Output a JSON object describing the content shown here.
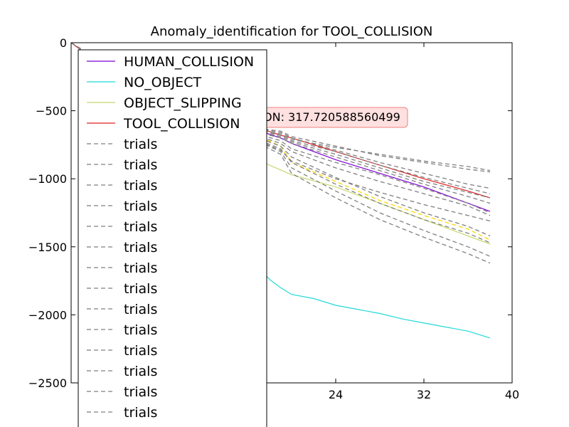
{
  "chart_data": {
    "type": "line",
    "title": "Anomaly_identification for TOOL_COLLISION",
    "xlabel": "",
    "ylabel": "",
    "xlim": [
      0,
      40
    ],
    "ylim": [
      -2500,
      0
    ],
    "xticks": [
      24,
      32,
      40
    ],
    "yticks": [
      0,
      -500,
      -1000,
      -1500,
      -2000,
      -2500
    ],
    "legend": {
      "placement": "upper-left",
      "entries": [
        "HUMAN_COLLISION",
        "NO_OBJECT",
        "OBJECT_SLIPPING",
        "TOOL_COLLISION",
        "trials",
        "trials",
        "trials",
        "trials",
        "trials",
        "trials",
        "trials",
        "trials",
        "trials",
        "trials",
        "trials",
        "trials",
        "trials",
        "trials"
      ]
    },
    "annotation": {
      "text": "TOOL_COLLISION: 317.720588560499",
      "visible_text": "ON: 317.720588560499"
    },
    "series": [
      {
        "name": "HUMAN_COLLISION",
        "color": "#7b00d4",
        "style": "solid",
        "x": [
          0,
          1,
          2,
          4,
          8,
          12,
          16,
          19,
          20,
          24,
          28,
          32,
          36,
          38
        ],
        "y": [
          0,
          -60,
          -120,
          -220,
          -380,
          -520,
          -620,
          -700,
          -740,
          -860,
          -960,
          -1060,
          -1180,
          -1240
        ]
      },
      {
        "name": "NO_OBJECT",
        "color": "#22d8d8",
        "style": "solid",
        "x": [
          0,
          1,
          2,
          4,
          8,
          12,
          16,
          17,
          18,
          19,
          20,
          22,
          24,
          28,
          30,
          32,
          36,
          38
        ],
        "y": [
          0,
          -60,
          -130,
          -320,
          -700,
          -1050,
          -1450,
          -1650,
          -1740,
          -1800,
          -1850,
          -1880,
          -1930,
          -1990,
          -2030,
          -2060,
          -2120,
          -2170
        ]
      },
      {
        "name": "OBJECT_SLIPPING",
        "color": "#c8d870",
        "style": "solid",
        "x": [
          0,
          1,
          2,
          4,
          8,
          12,
          16,
          18,
          20,
          24,
          28,
          32,
          36,
          38
        ],
        "y": [
          0,
          -60,
          -120,
          -240,
          -450,
          -630,
          -820,
          -900,
          -970,
          -1060,
          -1180,
          -1300,
          -1420,
          -1480
        ]
      },
      {
        "name": "TOOL_COLLISION",
        "color": "#e02020",
        "style": "solid",
        "x": [
          0,
          1,
          2,
          4,
          8,
          12,
          16,
          19,
          20,
          24,
          28,
          32,
          36,
          38
        ],
        "y": [
          0,
          -60,
          -110,
          -200,
          -360,
          -500,
          -600,
          -680,
          -700,
          -800,
          -900,
          -1000,
          -1090,
          -1140
        ]
      },
      {
        "name": "trials",
        "color": "#ffd700",
        "style": "dashed",
        "x": [
          0,
          4,
          8,
          12,
          16,
          19,
          20,
          24,
          28,
          32,
          36,
          38
        ],
        "y": [
          0,
          -220,
          -420,
          -560,
          -650,
          -760,
          -880,
          -1020,
          -1160,
          -1270,
          -1370,
          -1450
        ]
      },
      {
        "name": "trials",
        "color": "#808080",
        "style": "dashed",
        "x": [
          0,
          4,
          8,
          12,
          16,
          19,
          20,
          24,
          28,
          32,
          36,
          38
        ],
        "y": [
          0,
          -200,
          -380,
          -520,
          -620,
          -650,
          -690,
          -760,
          -830,
          -880,
          -930,
          -950
        ]
      },
      {
        "name": "trials",
        "color": "#808080",
        "style": "dashed",
        "x": [
          0,
          4,
          8,
          12,
          16,
          19,
          20,
          24,
          28,
          32,
          36,
          38
        ],
        "y": [
          0,
          -200,
          -380,
          -520,
          -620,
          -660,
          -700,
          -790,
          -880,
          -960,
          -1040,
          -1070
        ]
      },
      {
        "name": "trials",
        "color": "#808080",
        "style": "dashed",
        "x": [
          0,
          4,
          8,
          12,
          16,
          19,
          20,
          24,
          28,
          32,
          36,
          38
        ],
        "y": [
          0,
          -210,
          -390,
          -530,
          -630,
          -680,
          -720,
          -800,
          -900,
          -990,
          -1070,
          -1110
        ]
      },
      {
        "name": "trials",
        "color": "#808080",
        "style": "dashed",
        "x": [
          0,
          4,
          8,
          12,
          16,
          19,
          20,
          24,
          28,
          32,
          36,
          38
        ],
        "y": [
          0,
          -210,
          -400,
          -540,
          -640,
          -700,
          -740,
          -840,
          -940,
          -1040,
          -1130,
          -1180
        ]
      },
      {
        "name": "trials",
        "color": "#808080",
        "style": "dashed",
        "x": [
          0,
          4,
          8,
          12,
          16,
          19,
          20,
          24,
          28,
          32,
          36,
          38
        ],
        "y": [
          0,
          -215,
          -405,
          -550,
          -650,
          -720,
          -780,
          -880,
          -970,
          -1070,
          -1180,
          -1250
        ]
      },
      {
        "name": "trials",
        "color": "#808080",
        "style": "dashed",
        "x": [
          0,
          4,
          8,
          12,
          16,
          19,
          20,
          24,
          28,
          32,
          36,
          38
        ],
        "y": [
          0,
          -215,
          -410,
          -555,
          -660,
          -740,
          -800,
          -920,
          -1020,
          -1110,
          -1200,
          -1270
        ]
      },
      {
        "name": "trials",
        "color": "#808080",
        "style": "dashed",
        "x": [
          0,
          4,
          8,
          12,
          16,
          19,
          20,
          24,
          28,
          32,
          36,
          38
        ],
        "y": [
          0,
          -220,
          -415,
          -560,
          -670,
          -760,
          -840,
          -990,
          -1130,
          -1250,
          -1350,
          -1420
        ]
      },
      {
        "name": "trials",
        "color": "#808080",
        "style": "dashed",
        "x": [
          0,
          4,
          8,
          12,
          16,
          19,
          20,
          24,
          28,
          32,
          36,
          38
        ],
        "y": [
          0,
          -220,
          -420,
          -565,
          -680,
          -780,
          -880,
          -1040,
          -1180,
          -1300,
          -1400,
          -1470
        ]
      },
      {
        "name": "trials",
        "color": "#808080",
        "style": "dashed",
        "x": [
          0,
          4,
          8,
          12,
          16,
          19,
          20,
          24,
          28,
          32,
          36,
          38
        ],
        "y": [
          0,
          -220,
          -420,
          -570,
          -690,
          -800,
          -920,
          -1090,
          -1250,
          -1380,
          -1500,
          -1570
        ]
      },
      {
        "name": "trials",
        "color": "#808080",
        "style": "dashed",
        "x": [
          0,
          4,
          8,
          12,
          16,
          19,
          20,
          24,
          28,
          32,
          36,
          38
        ],
        "y": [
          0,
          -225,
          -425,
          -575,
          -700,
          -820,
          -960,
          -1140,
          -1300,
          -1430,
          -1550,
          -1620
        ]
      },
      {
        "name": "trials",
        "color": "#808080",
        "style": "dashed",
        "x": [
          0,
          4,
          8,
          12,
          16,
          19,
          20,
          24,
          28,
          32,
          36,
          38
        ],
        "y": [
          0,
          -220,
          -420,
          -570,
          -690,
          -790,
          -870,
          -1000,
          -1100,
          -1190,
          -1270,
          -1310
        ]
      },
      {
        "name": "trials",
        "color": "#808080",
        "style": "dashed",
        "x": [
          0,
          4,
          8,
          12,
          16,
          19,
          20,
          24,
          28,
          32,
          36,
          38
        ],
        "y": [
          0,
          -205,
          -390,
          -525,
          -625,
          -670,
          -710,
          -770,
          -820,
          -870,
          -910,
          -940
        ]
      },
      {
        "name": "trials",
        "color": "#808080",
        "style": "dashed",
        "x": [
          0,
          4,
          8,
          12,
          16,
          19,
          20,
          24,
          28,
          32,
          36,
          38
        ],
        "y": [
          0,
          -210,
          -395,
          -535,
          -635,
          -690,
          -730,
          -820,
          -920,
          -1020,
          -1100,
          -1140
        ]
      }
    ]
  }
}
